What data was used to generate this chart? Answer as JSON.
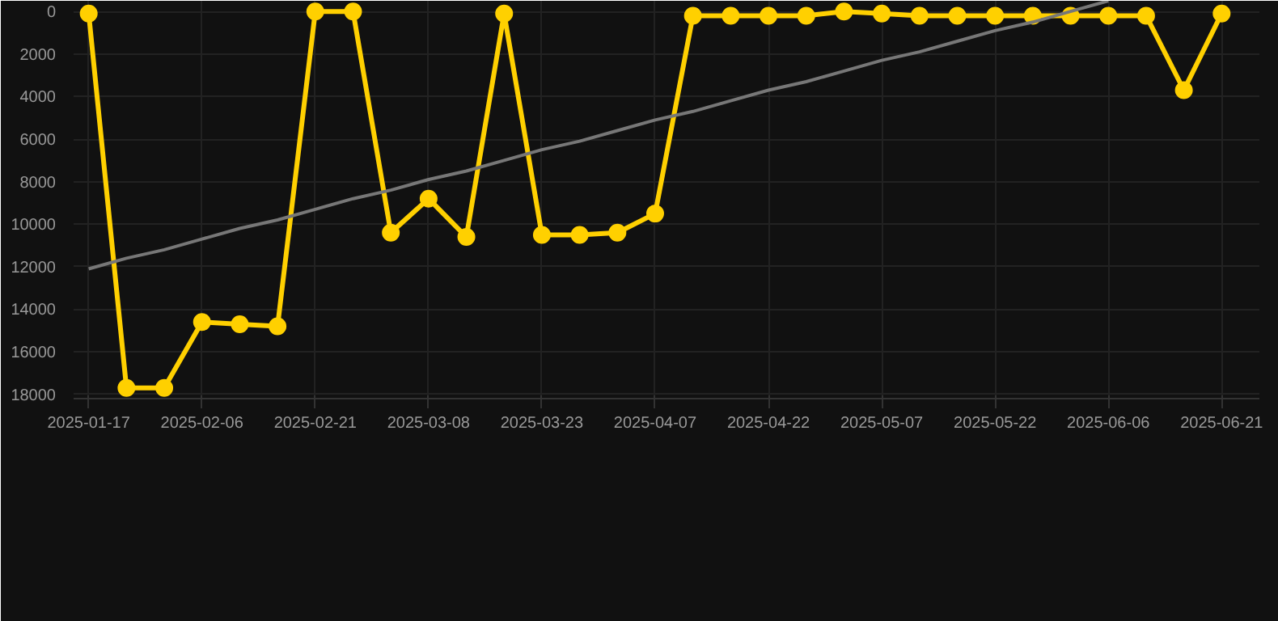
{
  "chart_data": {
    "type": "line",
    "categories": [
      "2025-01-17",
      null,
      null,
      "2025-02-06",
      null,
      null,
      "2025-02-21",
      null,
      null,
      "2025-03-08",
      null,
      null,
      "2025-03-23",
      null,
      null,
      "2025-04-07",
      null,
      null,
      "2025-04-22",
      null,
      null,
      "2025-05-07",
      null,
      null,
      "2025-05-22",
      null,
      null,
      "2025-06-06",
      null,
      null,
      "2025-06-21"
    ],
    "series": [
      {
        "color": "#ffd000",
        "values": [
          100,
          17700,
          17700,
          14600,
          14700,
          14800,
          0,
          0,
          10400,
          8800,
          10600,
          100,
          10500,
          10500,
          10400,
          9500,
          200,
          200,
          200,
          200,
          0,
          100,
          200,
          200,
          200,
          200,
          200,
          200,
          200,
          3700,
          100
        ]
      },
      {
        "type": "line",
        "color": "#777777",
        "marker": "none",
        "values": [
          12100,
          11600,
          11200,
          10700,
          10200,
          9800,
          9300,
          8800,
          8400,
          7900,
          7500,
          7000,
          6500,
          6100,
          5600,
          5100,
          4700,
          4200,
          3700,
          3300,
          2800,
          2300,
          1900,
          1400,
          900,
          500,
          0,
          -500,
          null,
          null,
          null
        ]
      }
    ],
    "ylim": [
      18200,
      -500
    ],
    "yticks": [
      0,
      2000,
      4000,
      6000,
      8000,
      10000,
      12000,
      14000,
      16000,
      18000
    ],
    "grid": true,
    "marker": "circle"
  }
}
